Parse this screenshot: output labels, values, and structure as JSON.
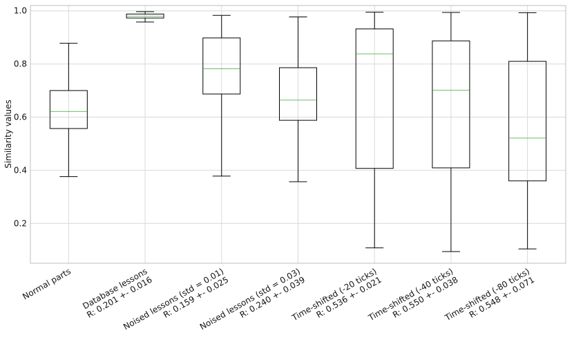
{
  "chart_data": {
    "type": "box",
    "ylabel": "Similarity values",
    "xlabel": "",
    "ylim": [
      0.05,
      1.02
    ],
    "yticks": [
      0.2,
      0.4,
      0.6,
      0.8,
      1.0
    ],
    "ytick_labels": [
      "0.2",
      "0.4",
      "0.6",
      "0.8",
      "1.0"
    ],
    "grid": true,
    "colors": {
      "box": "#000000",
      "median": "#2ca02c",
      "grid": "#d9d9d9"
    },
    "categories": [
      {
        "line1": "Normal parts",
        "line2": ""
      },
      {
        "line1": "Database lessons",
        "line2": "R: 0.201 +- 0.016"
      },
      {
        "line1": "Noised lessons (std = 0.01)",
        "line2": "R: 0.159 +- 0.025"
      },
      {
        "line1": "Noised lessons (std = 0.03)",
        "line2": "R: 0.240 +- 0.039"
      },
      {
        "line1": "Time-shifted (-20 ticks)",
        "line2": "R: 0.536 +- 0.021"
      },
      {
        "line1": "Time-shifted (-40 ticks)",
        "line2": "R: 0.550 +- 0.038"
      },
      {
        "line1": "Time-shifted (-80 ticks)",
        "line2": "R: 0.548 +- 0.071"
      }
    ],
    "boxes": [
      {
        "whislo": 0.376,
        "q1": 0.557,
        "med": 0.621,
        "q3": 0.7,
        "whishi": 0.878
      },
      {
        "whislo": 0.958,
        "q1": 0.973,
        "med": 0.98,
        "q3": 0.988,
        "whishi": 0.997
      },
      {
        "whislo": 0.378,
        "q1": 0.687,
        "med": 0.782,
        "q3": 0.898,
        "whishi": 0.983
      },
      {
        "whislo": 0.357,
        "q1": 0.588,
        "med": 0.664,
        "q3": 0.786,
        "whishi": 0.977
      },
      {
        "whislo": 0.108,
        "q1": 0.407,
        "med": 0.838,
        "q3": 0.932,
        "whishi": 0.995
      },
      {
        "whislo": 0.094,
        "q1": 0.409,
        "med": 0.701,
        "q3": 0.887,
        "whishi": 0.994
      },
      {
        "whislo": 0.104,
        "q1": 0.36,
        "med": 0.521,
        "q3": 0.81,
        "whishi": 0.993
      }
    ]
  }
}
